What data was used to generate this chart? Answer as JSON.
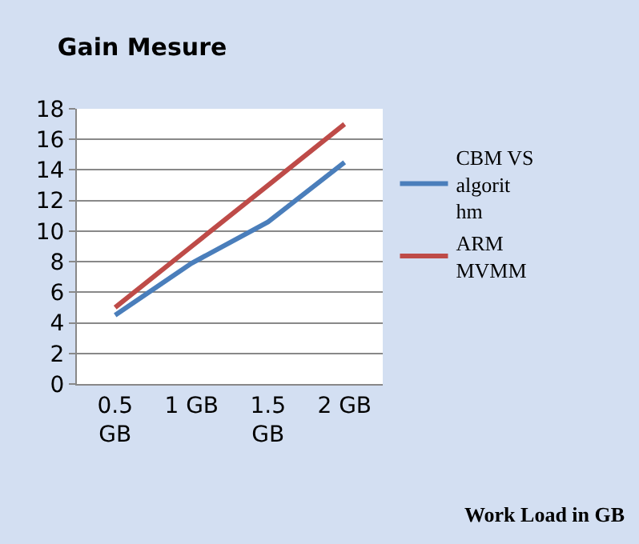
{
  "chart_data": {
    "type": "line",
    "title": "Gain Mesure",
    "xlabel": "Work Load in GB",
    "categories": [
      "0.5 GB",
      "1 GB",
      "1.5 GB",
      "2 GB"
    ],
    "series": [
      {
        "name": "CBM VS algorithm",
        "color": "#4a7ebb",
        "values": [
          4.5,
          7.9,
          10.6,
          14.5
        ]
      },
      {
        "name": "ARM MVMM",
        "color": "#be4b48",
        "values": [
          5,
          9,
          13,
          17
        ]
      }
    ],
    "ylim": [
      0,
      18
    ],
    "yticks": [
      0,
      2,
      4,
      6,
      8,
      10,
      12,
      14,
      16,
      18
    ],
    "grid": "y",
    "legend": "right",
    "marker": "none",
    "line_style": "solid"
  }
}
